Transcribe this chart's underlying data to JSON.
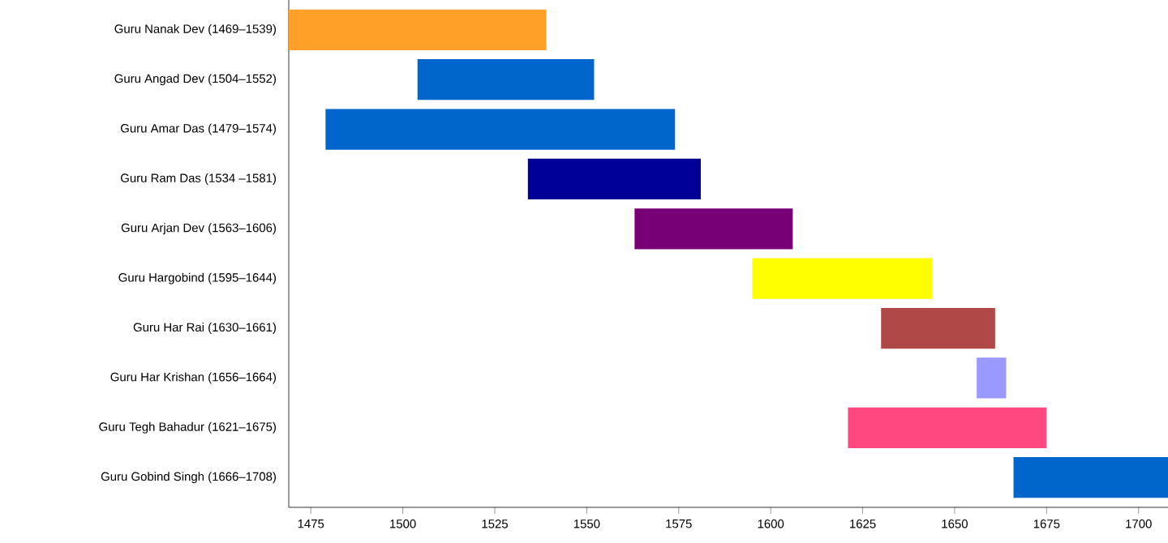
{
  "chart_data": {
    "type": "bar",
    "orientation": "horizontal",
    "categories": [
      "Guru Nanak Dev (1469–1539)",
      "Guru Angad Dev (1504–1552)",
      "Guru Amar Das (1479–1574)",
      "Guru Ram Das (1534 –1581)",
      "Guru Arjan Dev (1563–1606)",
      "Guru Hargobind (1595–1644)",
      "Guru Har Rai (1630–1661)",
      "Guru Har Krishan (1656–1664)",
      "Guru Tegh Bahadur (1621–1675)",
      "Guru Gobind Singh (1666–1708)"
    ],
    "base": [
      1469,
      1504,
      1479,
      1534,
      1563,
      1595,
      1630,
      1656,
      1621,
      1666
    ],
    "values": [
      70,
      48,
      95,
      47,
      43,
      49,
      31,
      8,
      54,
      42
    ],
    "colors": [
      "#ffa028",
      "#0066cc",
      "#0066cc",
      "#000099",
      "#770077",
      "#ffff00",
      "#b04848",
      "#9999ff",
      "#ff4880",
      "#0066cc"
    ],
    "xlim": [
      1469,
      1708
    ],
    "xticks": [
      1475,
      1500,
      1525,
      1550,
      1575,
      1600,
      1625,
      1650,
      1675,
      1700
    ]
  }
}
